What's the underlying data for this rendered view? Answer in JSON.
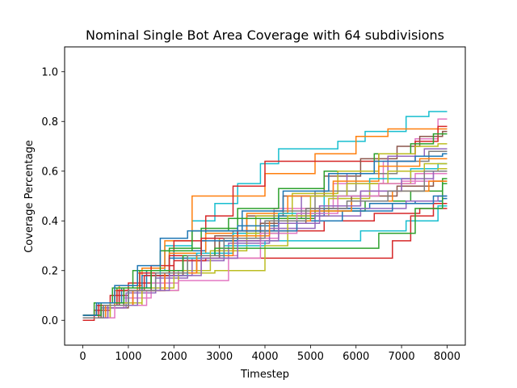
{
  "chart_data": {
    "type": "line",
    "title": "Nominal Single Bot Area Coverage with 64 subdivisions",
    "xlabel": "Timestep",
    "ylabel": "Coverage Percentage",
    "xlim": [
      -400,
      8400
    ],
    "ylim": [
      -0.1,
      1.1
    ],
    "xticks": [
      0,
      1000,
      2000,
      3000,
      4000,
      5000,
      6000,
      7000,
      8000
    ],
    "yticks": [
      0.0,
      0.2,
      0.4,
      0.6,
      0.8,
      1.0
    ],
    "xtick_labels": [
      "0",
      "1000",
      "2000",
      "3000",
      "4000",
      "5000",
      "6000",
      "7000",
      "8000"
    ],
    "ytick_labels": [
      "0.0",
      "0.2",
      "0.4",
      "0.6",
      "0.8",
      "1.0"
    ],
    "grid": false,
    "legend": false,
    "step": true,
    "series": [
      {
        "color": "#17becf",
        "x": [
          0,
          300,
          700,
          1200,
          1800,
          2400,
          2900,
          3400,
          3900,
          4300,
          5300,
          5600,
          6200,
          7100,
          7600,
          8000
        ],
        "y": [
          0.02,
          0.06,
          0.12,
          0.2,
          0.3,
          0.4,
          0.47,
          0.55,
          0.63,
          0.69,
          0.69,
          0.72,
          0.76,
          0.82,
          0.84,
          0.84
        ]
      },
      {
        "color": "#e377c2",
        "x": [
          0,
          400,
          900,
          1500,
          2100,
          2600,
          3300,
          4200,
          5500,
          6600,
          7300,
          7800,
          8000
        ],
        "y": [
          0.01,
          0.05,
          0.09,
          0.15,
          0.2,
          0.27,
          0.36,
          0.45,
          0.55,
          0.64,
          0.73,
          0.81,
          0.81
        ]
      },
      {
        "color": "#ff7f0e",
        "x": [
          0,
          350,
          800,
          1300,
          1800,
          2400,
          3200,
          4000,
          5100,
          6000,
          6700,
          7500,
          8000
        ],
        "y": [
          0.02,
          0.07,
          0.14,
          0.21,
          0.32,
          0.5,
          0.5,
          0.59,
          0.67,
          0.74,
          0.77,
          0.77,
          0.77
        ]
      },
      {
        "color": "#d62728",
        "x": [
          0,
          250,
          600,
          1000,
          1500,
          2000,
          2700,
          3300,
          4000,
          4800,
          5600,
          6500,
          7300,
          7800,
          8000
        ],
        "y": [
          0.0,
          0.04,
          0.1,
          0.15,
          0.22,
          0.32,
          0.42,
          0.54,
          0.64,
          0.64,
          0.64,
          0.67,
          0.72,
          0.78,
          0.78
        ]
      },
      {
        "color": "#8c564b",
        "x": [
          0,
          450,
          1000,
          1600,
          2200,
          2900,
          3600,
          4400,
          5300,
          6100,
          6900,
          7400,
          7900,
          8000
        ],
        "y": [
          0.01,
          0.05,
          0.12,
          0.18,
          0.26,
          0.34,
          0.42,
          0.5,
          0.58,
          0.65,
          0.7,
          0.74,
          0.76,
          0.76
        ]
      },
      {
        "color": "#2ca02c",
        "x": [
          0,
          300,
          750,
          1250,
          1900,
          2600,
          3400,
          4300,
          5300,
          6400,
          7200,
          7700,
          8000
        ],
        "y": [
          0.02,
          0.06,
          0.13,
          0.2,
          0.29,
          0.37,
          0.45,
          0.53,
          0.6,
          0.67,
          0.71,
          0.75,
          0.75
        ]
      },
      {
        "color": "#bcbd22",
        "x": [
          0,
          500,
          1100,
          1700,
          2300,
          3000,
          3800,
          4600,
          5600,
          6500,
          7300,
          7800,
          8000
        ],
        "y": [
          0.01,
          0.06,
          0.12,
          0.18,
          0.25,
          0.33,
          0.42,
          0.51,
          0.6,
          0.67,
          0.7,
          0.71,
          0.71
        ]
      },
      {
        "color": "#9467bd",
        "x": [
          0,
          400,
          950,
          1600,
          2300,
          3100,
          3900,
          4800,
          5800,
          6700,
          7500,
          8000
        ],
        "y": [
          0.01,
          0.05,
          0.11,
          0.17,
          0.24,
          0.32,
          0.41,
          0.5,
          0.59,
          0.66,
          0.69,
          0.69
        ]
      },
      {
        "color": "#7f7f7f",
        "x": [
          0,
          550,
          1200,
          1800,
          2500,
          3300,
          4200,
          5100,
          6000,
          6900,
          7600,
          8000
        ],
        "y": [
          0.01,
          0.06,
          0.12,
          0.19,
          0.27,
          0.36,
          0.44,
          0.52,
          0.59,
          0.64,
          0.68,
          0.68
        ]
      },
      {
        "color": "#1f77b4",
        "x": [
          0,
          350,
          850,
          1400,
          2000,
          2700,
          3500,
          4400,
          5400,
          6400,
          7300,
          7900,
          8000
        ],
        "y": [
          0.02,
          0.07,
          0.13,
          0.2,
          0.28,
          0.36,
          0.44,
          0.52,
          0.59,
          0.64,
          0.66,
          0.67,
          0.67
        ]
      },
      {
        "color": "#ff7f0e",
        "x": [
          0,
          300,
          700,
          1200,
          1900,
          2700,
          3600,
          4500,
          5500,
          6500,
          7400,
          8000
        ],
        "y": [
          0.02,
          0.06,
          0.12,
          0.19,
          0.27,
          0.35,
          0.43,
          0.5,
          0.56,
          0.62,
          0.65,
          0.65
        ]
      },
      {
        "color": "#17becf",
        "x": [
          0,
          450,
          1000,
          1700,
          2500,
          3300,
          4300,
          5300,
          6300,
          7200,
          7800,
          8000
        ],
        "y": [
          0.01,
          0.06,
          0.12,
          0.2,
          0.27,
          0.35,
          0.43,
          0.5,
          0.57,
          0.61,
          0.63,
          0.63
        ]
      },
      {
        "color": "#bcbd22",
        "x": [
          0,
          600,
          1300,
          2000,
          2800,
          3600,
          4500,
          5400,
          6300,
          7200,
          7800,
          8000
        ],
        "y": [
          0.01,
          0.07,
          0.13,
          0.2,
          0.28,
          0.35,
          0.42,
          0.49,
          0.55,
          0.6,
          0.61,
          0.61
        ]
      },
      {
        "color": "#e377c2",
        "x": [
          0,
          500,
          1100,
          1800,
          2500,
          3400,
          4300,
          5200,
          6100,
          7000,
          7700,
          8000
        ],
        "y": [
          0.01,
          0.06,
          0.12,
          0.19,
          0.26,
          0.33,
          0.4,
          0.46,
          0.52,
          0.56,
          0.59,
          0.59
        ]
      },
      {
        "color": "#2ca02c",
        "x": [
          0,
          250,
          650,
          1100,
          1700,
          2400,
          3200,
          4100,
          5100,
          6200,
          7200,
          7900,
          8000
        ],
        "y": [
          0.02,
          0.07,
          0.13,
          0.2,
          0.28,
          0.36,
          0.41,
          0.41,
          0.44,
          0.48,
          0.52,
          0.57,
          0.57
        ]
      },
      {
        "color": "#8c564b",
        "x": [
          0,
          400,
          900,
          1500,
          2200,
          3000,
          3900,
          4900,
          5900,
          6900,
          7700,
          8000
        ],
        "y": [
          0.01,
          0.06,
          0.12,
          0.18,
          0.25,
          0.32,
          0.39,
          0.45,
          0.5,
          0.54,
          0.56,
          0.56
        ]
      },
      {
        "color": "#1f77b4",
        "x": [
          0,
          350,
          800,
          1300,
          1900,
          2600,
          3400,
          4300,
          5300,
          6300,
          7300,
          7900,
          8000
        ],
        "y": [
          0.02,
          0.06,
          0.12,
          0.18,
          0.25,
          0.32,
          0.38,
          0.42,
          0.45,
          0.47,
          0.48,
          0.49,
          0.49
        ]
      },
      {
        "color": "#9467bd",
        "x": [
          0,
          500,
          1100,
          1700,
          2400,
          3200,
          4100,
          5100,
          6100,
          7100,
          7800,
          8000
        ],
        "y": [
          0.01,
          0.06,
          0.12,
          0.18,
          0.25,
          0.31,
          0.37,
          0.42,
          0.45,
          0.48,
          0.5,
          0.5
        ]
      },
      {
        "color": "#d62728",
        "x": [
          0,
          300,
          750,
          1250,
          1900,
          2600,
          3400,
          4300,
          5300,
          6400,
          7400,
          8000
        ],
        "y": [
          0.02,
          0.06,
          0.12,
          0.19,
          0.26,
          0.33,
          0.36,
          0.36,
          0.4,
          0.43,
          0.45,
          0.45
        ]
      },
      {
        "color": "#17becf",
        "x": [
          0,
          450,
          1000,
          1600,
          2300,
          3100,
          4000,
          5000,
          6100,
          7100,
          7800,
          8000
        ],
        "y": [
          0.01,
          0.06,
          0.12,
          0.18,
          0.25,
          0.3,
          0.32,
          0.32,
          0.36,
          0.4,
          0.46,
          0.46
        ]
      },
      {
        "color": "#d62728",
        "x": [
          0,
          350,
          800,
          1350,
          2000,
          2700,
          3400,
          6500,
          6800,
          7200,
          7700,
          8000
        ],
        "y": [
          0.01,
          0.06,
          0.12,
          0.18,
          0.24,
          0.25,
          0.25,
          0.25,
          0.32,
          0.42,
          0.47,
          0.47
        ]
      },
      {
        "color": "#bcbd22",
        "x": [
          0,
          600,
          1300,
          2100,
          2900,
          3500,
          4000,
          4500,
          5000,
          5800,
          6700,
          7500,
          8000
        ],
        "y": [
          0.01,
          0.06,
          0.12,
          0.19,
          0.2,
          0.2,
          0.3,
          0.42,
          0.5,
          0.55,
          0.6,
          0.63,
          0.63
        ]
      },
      {
        "color": "#e377c2",
        "x": [
          0,
          700,
          1400,
          2100,
          2600,
          3200,
          3900,
          4700,
          5600,
          6500,
          7300,
          8000
        ],
        "y": [
          0.01,
          0.06,
          0.12,
          0.16,
          0.16,
          0.25,
          0.35,
          0.43,
          0.5,
          0.55,
          0.59,
          0.59
        ]
      },
      {
        "color": "#2ca02c",
        "x": [
          0,
          400,
          900,
          1500,
          2200,
          2900,
          3700,
          4600,
          5600,
          6500,
          7300,
          7900,
          8000
        ],
        "y": [
          0.02,
          0.07,
          0.13,
          0.2,
          0.26,
          0.29,
          0.29,
          0.29,
          0.29,
          0.35,
          0.45,
          0.55,
          0.55
        ]
      },
      {
        "color": "#1f77b4",
        "x": [
          0,
          300,
          700,
          1200,
          1700,
          2300,
          3000,
          3800,
          4700,
          5700,
          6800,
          7700,
          8000
        ],
        "y": [
          0.02,
          0.07,
          0.14,
          0.22,
          0.33,
          0.36,
          0.36,
          0.36,
          0.4,
          0.44,
          0.47,
          0.5,
          0.5
        ]
      },
      {
        "color": "#ff7f0e",
        "x": [
          0,
          500,
          1100,
          1800,
          2500,
          3300,
          4100,
          5000,
          5900,
          6800,
          7600,
          8000
        ],
        "y": [
          0.01,
          0.06,
          0.12,
          0.19,
          0.26,
          0.34,
          0.4,
          0.44,
          0.48,
          0.52,
          0.56,
          0.56
        ]
      },
      {
        "color": "#9467bd",
        "x": [
          0,
          550,
          1200,
          1900,
          2600,
          3400,
          4300,
          5200,
          6100,
          7000,
          7700,
          8000
        ],
        "y": [
          0.01,
          0.06,
          0.12,
          0.18,
          0.25,
          0.32,
          0.39,
          0.46,
          0.52,
          0.57,
          0.6,
          0.6
        ]
      },
      {
        "color": "#7f7f7f",
        "x": [
          0,
          450,
          1000,
          1600,
          2300,
          3100,
          4000,
          4900,
          5800,
          6700,
          7500,
          8000
        ],
        "y": [
          0.01,
          0.06,
          0.12,
          0.19,
          0.26,
          0.33,
          0.4,
          0.45,
          0.48,
          0.52,
          0.6,
          0.6
        ]
      }
    ]
  }
}
